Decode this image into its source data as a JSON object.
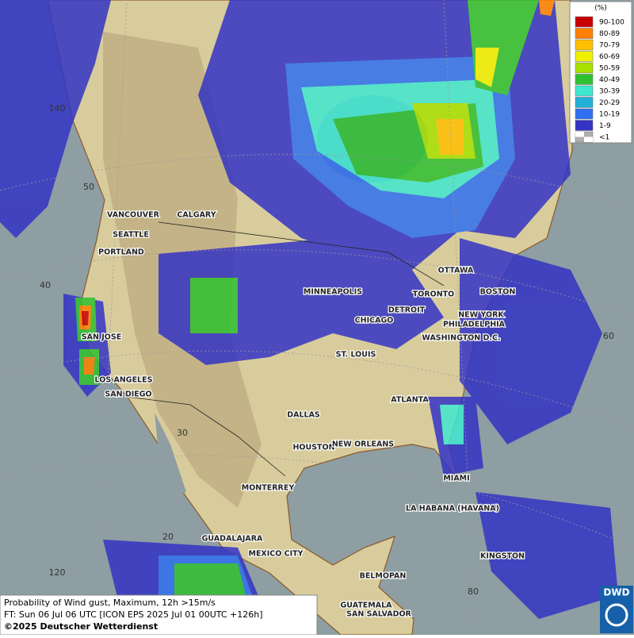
{
  "legend": {
    "title": "(%)",
    "items": [
      {
        "label": "90-100",
        "color": "#c80000"
      },
      {
        "label": "80-89",
        "color": "#ff8000"
      },
      {
        "label": "70-79",
        "color": "#ffc000"
      },
      {
        "label": "60-69",
        "color": "#f0f000"
      },
      {
        "label": "50-59",
        "color": "#a8e000"
      },
      {
        "label": "40-49",
        "color": "#30c030"
      },
      {
        "label": "30-39",
        "color": "#40e8d0"
      },
      {
        "label": "20-29",
        "color": "#20b0d8"
      },
      {
        "label": "10-19",
        "color": "#3070f0"
      },
      {
        "label": "1-9",
        "color": "#3434c4"
      },
      {
        "label": "<1",
        "color": "#b0b0b0"
      }
    ]
  },
  "cities": [
    "VANCOUVER",
    "CALGARY",
    "SEATTLE",
    "PORTLAND",
    "MINNEAPOLIS",
    "OTTAWA",
    "TORONTO",
    "BOSTON",
    "DETROIT",
    "CHICAGO",
    "NEW YORK",
    "PHILADELPHIA",
    "SAN JOSE",
    "WASHINGTON D.C.",
    "ST. LOUIS",
    "LOS ANGELES",
    "SAN DIEGO",
    "ATLANTA",
    "DALLAS",
    "HOUSTON",
    "NEW ORLEANS",
    "MIAMI",
    "MONTERREY",
    "LA HABANA (HAVANA)",
    "GUADALAJARA",
    "MEXICO CITY",
    "KINGSTON",
    "BELMOPAN",
    "GUATEMALA",
    "SAN SALVADOR"
  ],
  "graticule_labels": [
    140,
    50,
    40,
    30,
    20,
    120,
    60,
    80
  ],
  "footer": [
    "Probability of Wind gust, Maximum, 12h >15m/s",
    "FT: Sun 06 Jul 06 UTC [ICON EPS 2025 Jul 01 00UTC +126h]",
    "©2025 Deutscher Wetterdienst"
  ],
  "logo": "DWD"
}
